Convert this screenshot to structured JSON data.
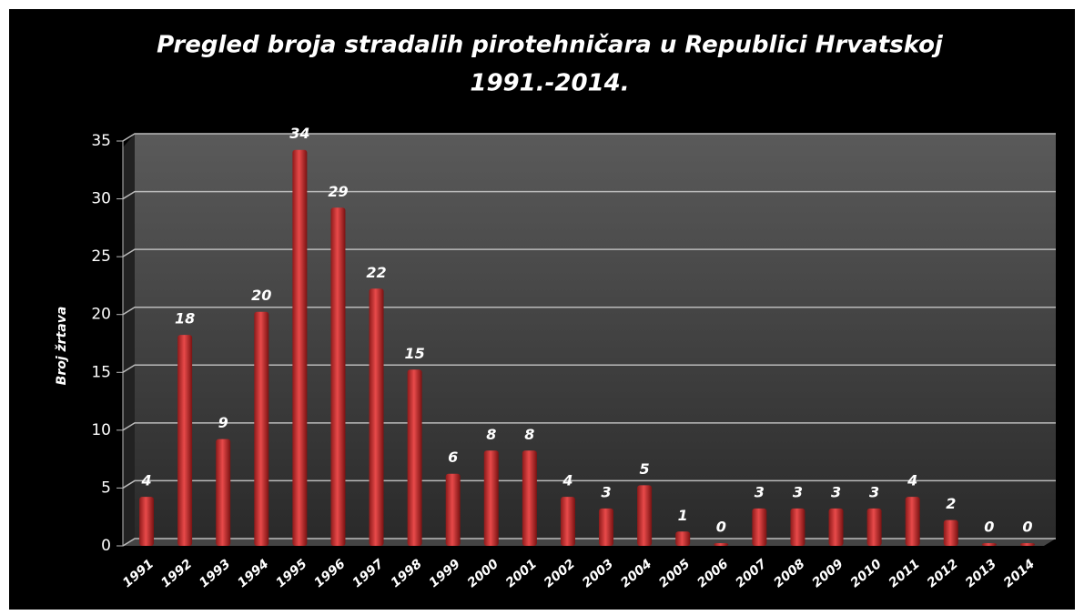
{
  "chart_data": {
    "type": "bar",
    "title": [
      "Pregled broja stradalih pirotehničara u Republici Hrvatskoj",
      "1991.-2014."
    ],
    "ylabel": "Broj žrtava",
    "categories": [
      "1991",
      "1992",
      "1993",
      "1994",
      "1995",
      "1996",
      "1997",
      "1998",
      "1999",
      "2000",
      "2001",
      "2002",
      "2003",
      "2004",
      "2005",
      "2006",
      "2007",
      "2008",
      "2009",
      "2010",
      "2011",
      "2012",
      "2013",
      "2014"
    ],
    "values": [
      4,
      18,
      9,
      20,
      34,
      29,
      22,
      15,
      6,
      8,
      8,
      4,
      3,
      5,
      1,
      0,
      3,
      3,
      3,
      3,
      4,
      2,
      0,
      0
    ],
    "color": "#d93a3a",
    "ylim": [
      0,
      35
    ],
    "yticks": [
      0,
      5,
      10,
      15,
      20,
      25,
      30,
      35
    ],
    "grid": true
  }
}
